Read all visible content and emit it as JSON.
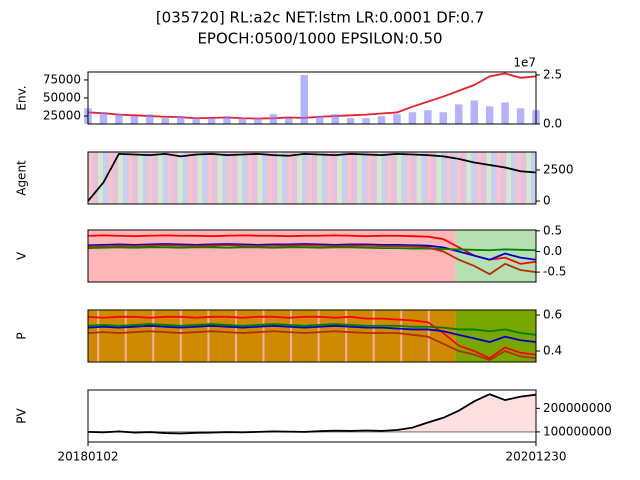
{
  "chart_data": [
    {
      "type": "line",
      "title": "[035720] RL:a2c NET:lstm LR:0.0001 DF:0.7",
      "subtitle": "EPOCH:0500/1000 EPSILON:0.50",
      "ylabel": "Env.",
      "ylim": [
        14000,
        86000
      ],
      "yticks": [
        25000,
        50000,
        75000
      ],
      "y2lim": [
        0,
        2.65
      ],
      "y2ticks": [
        {
          "value": 0,
          "label": "0.0"
        },
        2.5
      ],
      "y2_offset_text": "1e7",
      "series": [
        {
          "color": "#e8202a",
          "values": [
            30000,
            29000,
            27000,
            26000,
            25000,
            24000,
            23500,
            22000,
            22500,
            23000,
            22000,
            21500,
            22000,
            23000,
            22500,
            24000,
            25000,
            26000,
            27000,
            28500,
            30000,
            38000,
            45000,
            52000,
            60000,
            68000,
            80000,
            84000,
            78000,
            80000
          ]
        },
        {
          "color": "#8080ff",
          "axis": "y2",
          "values": [
            0.8,
            0.6,
            0.5,
            0.4,
            0.5,
            0.3,
            0.4,
            0.3,
            0.3,
            0.4,
            0.3,
            0.3,
            0.5,
            0.3,
            2.5,
            0.4,
            0.5,
            0.3,
            0.3,
            0.4,
            0.5,
            0.6,
            0.7,
            0.6,
            1.0,
            1.2,
            0.9,
            1.1,
            0.8,
            0.7
          ]
        }
      ]
    },
    {
      "type": "line",
      "ylabel": "Agent",
      "ylim": [
        -240,
        3950
      ],
      "yticks": [
        0,
        2500
      ],
      "series": [
        {
          "color": "#000000",
          "values": [
            0,
            1500,
            3800,
            3750,
            3700,
            3800,
            3600,
            3750,
            3800,
            3700,
            3750,
            3800,
            3700,
            3650,
            3800,
            3750,
            3700,
            3800,
            3750,
            3700,
            3800,
            3750,
            3700,
            3600,
            3400,
            3100,
            2900,
            2700,
            2400,
            2300
          ]
        }
      ]
    },
    {
      "type": "line",
      "ylabel": "V",
      "ylim": [
        -0.74,
        0.52
      ],
      "yticks": [
        0.5,
        {
          "value": 0,
          "label": "0.0"
        },
        -0.5
      ],
      "series": [
        {
          "color": "#ff0000",
          "values": [
            0.38,
            0.39,
            0.38,
            0.37,
            0.38,
            0.39,
            0.38,
            0.38,
            0.37,
            0.38,
            0.39,
            0.38,
            0.38,
            0.37,
            0.38,
            0.38,
            0.39,
            0.38,
            0.37,
            0.38,
            0.38,
            0.37,
            0.36,
            0.3,
            0.1,
            -0.1,
            -0.2,
            -0.15,
            -0.3,
            -0.25
          ]
        },
        {
          "color": "#0000cc",
          "values": [
            0.15,
            0.16,
            0.17,
            0.16,
            0.17,
            0.18,
            0.17,
            0.16,
            0.17,
            0.18,
            0.17,
            0.16,
            0.17,
            0.17,
            0.18,
            0.17,
            0.16,
            0.17,
            0.17,
            0.16,
            0.16,
            0.15,
            0.14,
            0.1,
            0.0,
            -0.1,
            -0.2,
            -0.05,
            -0.15,
            -0.2
          ]
        },
        {
          "color": "#008000",
          "values": [
            0.08,
            0.09,
            0.1,
            0.09,
            0.1,
            0.1,
            0.09,
            0.1,
            0.1,
            0.09,
            0.1,
            0.1,
            0.09,
            0.1,
            0.1,
            0.09,
            0.1,
            0.1,
            0.09,
            0.08,
            0.08,
            0.07,
            0.07,
            0.06,
            0.05,
            0.04,
            0.03,
            0.05,
            0.04,
            0.03
          ]
        },
        {
          "color": "#b03000",
          "values": [
            0.12,
            0.13,
            0.14,
            0.13,
            0.14,
            0.15,
            0.14,
            0.13,
            0.14,
            0.15,
            0.14,
            0.13,
            0.14,
            0.14,
            0.15,
            0.14,
            0.13,
            0.14,
            0.14,
            0.13,
            0.13,
            0.12,
            0.1,
            0.0,
            -0.2,
            -0.35,
            -0.55,
            -0.3,
            -0.45,
            -0.5
          ]
        }
      ]
    },
    {
      "type": "line",
      "ylabel": "P",
      "ylim": [
        0.339,
        0.628
      ],
      "yticks": [
        0.6,
        0.4
      ],
      "series": [
        {
          "color": "#ff0000",
          "values": [
            0.59,
            0.585,
            0.59,
            0.59,
            0.585,
            0.59,
            0.59,
            0.585,
            0.59,
            0.59,
            0.585,
            0.59,
            0.59,
            0.585,
            0.59,
            0.59,
            0.585,
            0.59,
            0.58,
            0.58,
            0.575,
            0.57,
            0.56,
            0.5,
            0.43,
            0.4,
            0.36,
            0.42,
            0.39,
            0.38
          ]
        },
        {
          "color": "#0000cc",
          "values": [
            0.53,
            0.535,
            0.53,
            0.535,
            0.54,
            0.535,
            0.53,
            0.535,
            0.54,
            0.535,
            0.53,
            0.535,
            0.54,
            0.535,
            0.53,
            0.535,
            0.54,
            0.535,
            0.53,
            0.53,
            0.525,
            0.52,
            0.52,
            0.51,
            0.49,
            0.47,
            0.45,
            0.48,
            0.46,
            0.45
          ]
        },
        {
          "color": "#008000",
          "values": [
            0.54,
            0.545,
            0.54,
            0.545,
            0.55,
            0.545,
            0.54,
            0.545,
            0.55,
            0.545,
            0.54,
            0.545,
            0.55,
            0.545,
            0.54,
            0.545,
            0.55,
            0.545,
            0.54,
            0.54,
            0.54,
            0.535,
            0.535,
            0.53,
            0.52,
            0.52,
            0.51,
            0.52,
            0.5,
            0.49
          ]
        },
        {
          "color": "#b03000",
          "values": [
            0.5,
            0.505,
            0.5,
            0.505,
            0.51,
            0.505,
            0.5,
            0.505,
            0.51,
            0.505,
            0.5,
            0.505,
            0.51,
            0.505,
            0.5,
            0.505,
            0.51,
            0.505,
            0.5,
            0.5,
            0.5,
            0.49,
            0.48,
            0.44,
            0.4,
            0.38,
            0.35,
            0.4,
            0.37,
            0.36
          ]
        }
      ]
    },
    {
      "type": "line",
      "ylabel": "PV",
      "ylim": [
        57000000,
        278000000
      ],
      "yticks": [
        100000000,
        200000000
      ],
      "categories": [
        "20180102",
        null,
        null,
        null,
        null,
        null,
        null,
        null,
        null,
        null,
        null,
        null,
        null,
        null,
        null,
        null,
        null,
        null,
        null,
        null,
        null,
        null,
        null,
        null,
        null,
        null,
        null,
        null,
        null,
        "20201230"
      ],
      "series": [
        {
          "color": "#000000",
          "values": [
            100000000,
            98000000,
            102000000,
            97000000,
            99000000,
            95000000,
            93000000,
            96000000,
            97000000,
            99000000,
            98000000,
            100000000,
            102000000,
            101000000,
            100000000,
            103000000,
            105000000,
            104000000,
            106000000,
            104000000,
            108000000,
            118000000,
            140000000,
            160000000,
            190000000,
            230000000,
            260000000,
            235000000,
            250000000,
            258000000
          ]
        }
      ]
    }
  ]
}
